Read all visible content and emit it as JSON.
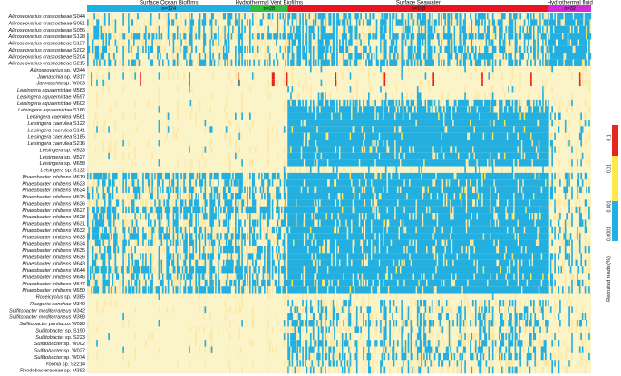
{
  "chart_data": {
    "type": "heatmap",
    "value_label": "Recruited reads (%)",
    "color_ticks": [
      "0.0001",
      "0.001",
      "0.01",
      "0.1"
    ],
    "colors": {
      "very_low": "#fbf4c8",
      "low": "#fde8a6",
      "mid": "#23afdf",
      "high": "#ffe84a",
      "top": "#e52520"
    },
    "groups": [
      {
        "name": "Surface Ocean Biofilms",
        "n_label": "n=124",
        "columns": 124,
        "color": "#1fb0e3"
      },
      {
        "name": "Hydrothermal Vent Biofilms",
        "n_label": "n=28",
        "columns": 28,
        "color": "#2fbf3a"
      },
      {
        "name": "Surface Seawater",
        "n_label": "n=198",
        "columns": 198,
        "color": "#e8141f"
      },
      {
        "name": "Hydrothermal fluid",
        "n_label": "n=32",
        "columns": 32,
        "color": "#cf2bd6"
      }
    ],
    "rows": [
      {
        "label": "Aliiroseovarius crassostreae S044",
        "profile": [
          0.35,
          0.35,
          0.5,
          0.7
        ]
      },
      {
        "label": "Aliiroseovarius crassostreae S051",
        "profile": [
          0.4,
          0.35,
          0.5,
          0.7
        ]
      },
      {
        "label": "Aliiroseovarius crassostreae S056",
        "profile": [
          0.35,
          0.3,
          0.45,
          0.65
        ]
      },
      {
        "label": "Aliiroseovarius crassostreae S128",
        "profile": [
          0.5,
          0.55,
          0.6,
          0.8
        ]
      },
      {
        "label": "Aliiroseovarius crassostreae S137",
        "profile": [
          0.35,
          0.3,
          0.45,
          0.65
        ]
      },
      {
        "label": "Aliiroseovarius crassostreae S202",
        "profile": [
          0.4,
          0.35,
          0.5,
          0.7
        ]
      },
      {
        "label": "Aliiroseovarius crassostreae S204",
        "profile": [
          0.35,
          0.3,
          0.5,
          0.65
        ]
      },
      {
        "label": "Aliiroseovarius crassostreae S215",
        "profile": [
          0.45,
          0.4,
          0.55,
          0.75
        ]
      },
      {
        "label": "Aliiroseovarius sp. M344",
        "profile": [
          0.05,
          0.05,
          0.1,
          0.1
        ]
      },
      {
        "label": "Jannaschia sp. M317",
        "profile": [
          0.1,
          0.15,
          0.08,
          0.05
        ]
      },
      {
        "label": "Jannaschia sp. W003",
        "profile": [
          0.1,
          0.15,
          0.08,
          0.05
        ]
      },
      {
        "label": "Leisingera aquaemixtae M583",
        "profile": [
          0.05,
          0.05,
          0.15,
          0.05
        ]
      },
      {
        "label": "Leisingera aquaemixtae M597",
        "profile": [
          0.05,
          0.05,
          0.2,
          0.05
        ]
      },
      {
        "label": "Leisingera aquaemixtae M602",
        "profile": [
          0.08,
          0.1,
          0.55,
          0.15
        ]
      },
      {
        "label": "Leisingera aquaemixtae S166",
        "profile": [
          0.08,
          0.1,
          0.65,
          0.15
        ]
      },
      {
        "label": "Leisingera caerulea M561",
        "profile": [
          0.1,
          0.1,
          0.85,
          0.2
        ]
      },
      {
        "label": "Leisingera caerulea S122",
        "profile": [
          0.1,
          0.1,
          0.85,
          0.2
        ]
      },
      {
        "label": "Leisingera caerulea S141",
        "profile": [
          0.1,
          0.1,
          0.85,
          0.2
        ]
      },
      {
        "label": "Leisingera caerulea S185",
        "profile": [
          0.1,
          0.1,
          0.85,
          0.2
        ]
      },
      {
        "label": "Leisingera caerulea S216",
        "profile": [
          0.1,
          0.1,
          0.85,
          0.2
        ]
      },
      {
        "label": "Leisingera sp. M523",
        "profile": [
          0.1,
          0.12,
          0.8,
          0.2
        ]
      },
      {
        "label": "Leisingera sp. M527",
        "profile": [
          0.1,
          0.12,
          0.8,
          0.2
        ]
      },
      {
        "label": "Leisingera sp. M658",
        "profile": [
          0.1,
          0.12,
          0.8,
          0.2
        ]
      },
      {
        "label": "Leisingera sp. S132",
        "profile": [
          0.05,
          0.05,
          0.2,
          0.05
        ]
      },
      {
        "label": "Phaeobacter inhibens M619",
        "profile": [
          0.55,
          0.5,
          0.8,
          0.35
        ]
      },
      {
        "label": "Phaeobacter inhibens M623",
        "profile": [
          0.45,
          0.45,
          0.75,
          0.3
        ]
      },
      {
        "label": "Phaeobacter inhibens M624",
        "profile": [
          0.45,
          0.45,
          0.75,
          0.3
        ]
      },
      {
        "label": "Phaeobacter inhibens M625",
        "profile": [
          0.45,
          0.45,
          0.75,
          0.3
        ]
      },
      {
        "label": "Phaeobacter inhibens M626",
        "profile": [
          0.45,
          0.45,
          0.75,
          0.3
        ]
      },
      {
        "label": "Phaeobacter inhibens M627",
        "profile": [
          0.55,
          0.5,
          0.8,
          0.35
        ]
      },
      {
        "label": "Phaeobacter inhibens M628",
        "profile": [
          0.45,
          0.45,
          0.75,
          0.3
        ]
      },
      {
        "label": "Phaeobacter inhibens M631",
        "profile": [
          0.45,
          0.45,
          0.75,
          0.3
        ]
      },
      {
        "label": "Phaeobacter inhibens M632",
        "profile": [
          0.45,
          0.45,
          0.75,
          0.3
        ]
      },
      {
        "label": "Phaeobacter inhibens M633",
        "profile": [
          0.55,
          0.5,
          0.8,
          0.35
        ]
      },
      {
        "label": "Phaeobacter inhibens M634",
        "profile": [
          0.45,
          0.45,
          0.75,
          0.3
        ]
      },
      {
        "label": "Phaeobacter inhibens M635",
        "profile": [
          0.45,
          0.45,
          0.75,
          0.3
        ]
      },
      {
        "label": "Phaeobacter inhibens M636",
        "profile": [
          0.45,
          0.45,
          0.75,
          0.3
        ]
      },
      {
        "label": "Phaeobacter inhibens M643",
        "profile": [
          0.45,
          0.45,
          0.75,
          0.3
        ]
      },
      {
        "label": "Phaeobacter inhibens M644",
        "profile": [
          0.6,
          0.55,
          0.85,
          0.35
        ]
      },
      {
        "label": "Phaeobacter inhibens M646",
        "profile": [
          0.45,
          0.45,
          0.75,
          0.3
        ]
      },
      {
        "label": "Phaeobacter inhibens M647",
        "profile": [
          0.45,
          0.45,
          0.75,
          0.3
        ]
      },
      {
        "label": "Phaeobacter inhibens M650",
        "profile": [
          0.55,
          0.5,
          0.8,
          0.35
        ]
      },
      {
        "label": "Roseicyclus sp. M385",
        "profile": [
          0.02,
          0.02,
          0.08,
          0.05
        ]
      },
      {
        "label": "Ruegeria conchae M340",
        "profile": [
          0.08,
          0.08,
          0.35,
          0.2
        ]
      },
      {
        "label": "Sulfitobacter mediterraneus M342",
        "profile": [
          0.08,
          0.08,
          0.4,
          0.2
        ]
      },
      {
        "label": "Sulfitobacter mediterraneus M368",
        "profile": [
          0.08,
          0.08,
          0.4,
          0.2
        ]
      },
      {
        "label": "Sulfitobacter pontiacus W028",
        "profile": [
          0.08,
          0.08,
          0.45,
          0.25
        ]
      },
      {
        "label": "Sulfitobacter sp. S190",
        "profile": [
          0.08,
          0.08,
          0.35,
          0.2
        ]
      },
      {
        "label": "Sulfitobacter sp. S223",
        "profile": [
          0.08,
          0.08,
          0.35,
          0.2
        ]
      },
      {
        "label": "Sulfitobacter sp. W002",
        "profile": [
          0.08,
          0.08,
          0.45,
          0.25
        ]
      },
      {
        "label": "Sulfitobacter sp. W027",
        "profile": [
          0.08,
          0.08,
          0.45,
          0.25
        ]
      },
      {
        "label": "Sulfitobacter sp. W074",
        "profile": [
          0.08,
          0.08,
          0.45,
          0.25
        ]
      },
      {
        "label": "Yoonia sp. S2214",
        "profile": [
          0.05,
          0.05,
          0.35,
          0.2
        ]
      },
      {
        "label": "Rhodobacteraceae sp. M382",
        "profile": [
          0.05,
          0.05,
          0.3,
          0.15
        ]
      }
    ]
  }
}
